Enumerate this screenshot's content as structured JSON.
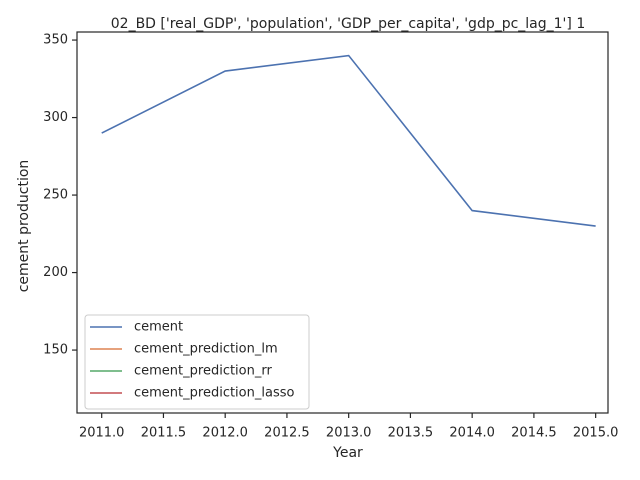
{
  "chart_data": {
    "type": "line",
    "title": "02_BD ['real_GDP', 'population', 'GDP_per_capita', 'gdp_pc_lag_1'] 1",
    "x_label": "Year",
    "y_label": "cement production",
    "x": [
      2011,
      2012,
      2013,
      2014,
      2015
    ],
    "series": [
      {
        "name": "cement",
        "color": "#4c72b0",
        "values": [
          290,
          330,
          340,
          240,
          230
        ]
      },
      {
        "name": "cement_prediction_lm",
        "color": "#dd8452",
        "values": [
          null,
          null,
          null,
          null,
          null
        ]
      },
      {
        "name": "cement_prediction_rr",
        "color": "#55a868",
        "values": [
          null,
          null,
          null,
          null,
          null
        ]
      },
      {
        "name": "cement_prediction_lasso",
        "color": "#c44e52",
        "values": [
          null,
          null,
          null,
          null,
          null
        ]
      }
    ],
    "xlim": [
      2010.8,
      2015.1
    ],
    "ylim": [
      109.4,
      355.2
    ],
    "xticks": [
      {
        "value": 2011.0,
        "label": "2011.0"
      },
      {
        "value": 2011.5,
        "label": "2011.5"
      },
      {
        "value": 2012.0,
        "label": "2012.0"
      },
      {
        "value": 2012.5,
        "label": "2012.5"
      },
      {
        "value": 2013.0,
        "label": "2013.0"
      },
      {
        "value": 2013.5,
        "label": "2013.5"
      },
      {
        "value": 2014.0,
        "label": "2014.0"
      },
      {
        "value": 2014.5,
        "label": "2014.5"
      },
      {
        "value": 2015.0,
        "label": "2015.0"
      }
    ],
    "yticks": [
      150,
      200,
      250,
      300,
      350
    ],
    "legend": "lower left",
    "grid": false
  }
}
